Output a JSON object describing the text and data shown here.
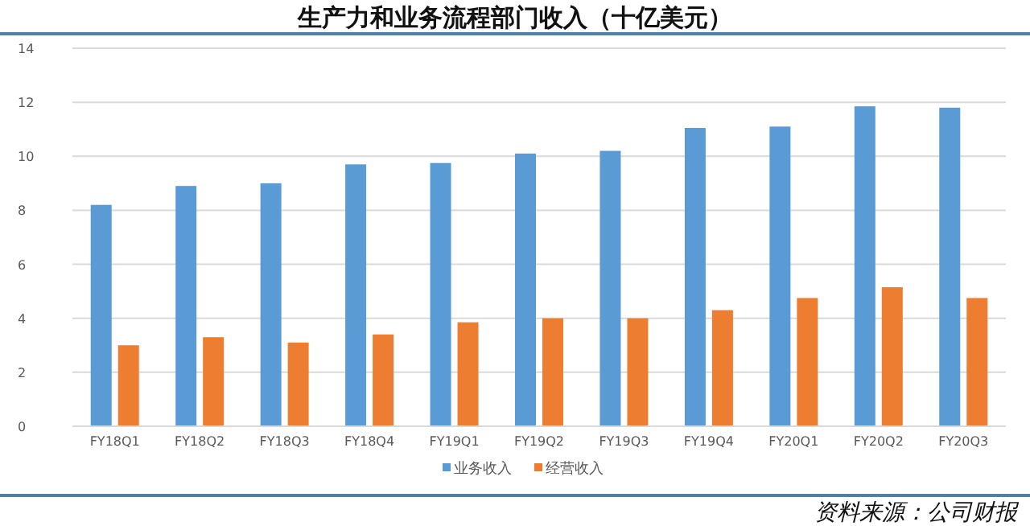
{
  "chart_data": {
    "type": "bar",
    "title": "生产力和业务流程部门收入（十亿美元）",
    "categories": [
      "FY18Q1",
      "FY18Q2",
      "FY18Q3",
      "FY18Q4",
      "FY19Q1",
      "FY19Q2",
      "FY19Q3",
      "FY19Q4",
      "FY20Q1",
      "FY20Q2",
      "FY20Q3"
    ],
    "series": [
      {
        "name": "业务收入",
        "color": "#5b9bd5",
        "values": [
          8.2,
          8.9,
          9.0,
          9.7,
          9.75,
          10.1,
          10.2,
          11.05,
          11.1,
          11.85,
          11.8
        ]
      },
      {
        "name": "经营收入",
        "color": "#ed7d31",
        "values": [
          3.0,
          3.3,
          3.1,
          3.4,
          3.85,
          4.0,
          4.0,
          4.3,
          4.75,
          5.15,
          4.75
        ]
      }
    ],
    "ylim": [
      0,
      14
    ],
    "yticks": [
      0,
      2,
      4,
      6,
      8,
      10,
      12,
      14
    ],
    "grid": "y",
    "legend": "bottom",
    "annotations": [
      "资料来源：公司财报"
    ]
  }
}
